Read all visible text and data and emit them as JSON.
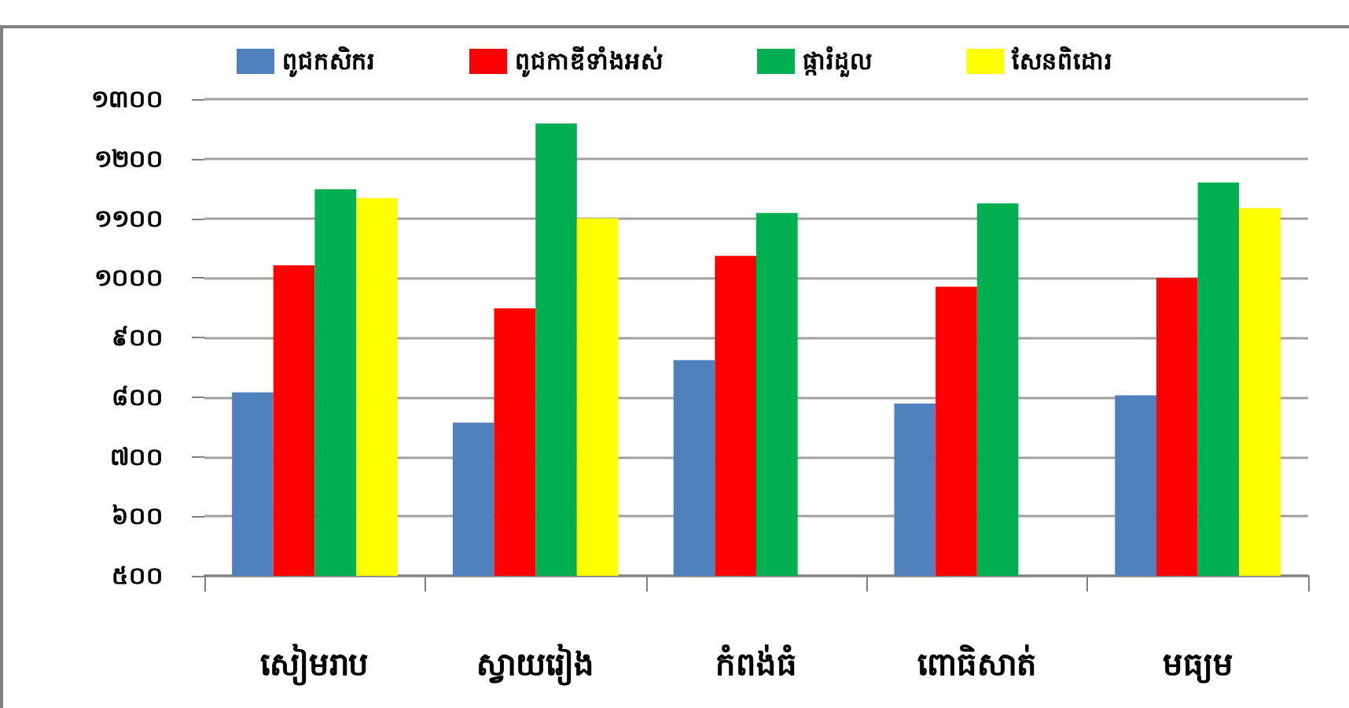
{
  "chart_data": {
    "type": "bar",
    "categories": [
      "សៀមរាប",
      "ស្វាយរៀង",
      "កំពង់ធំ",
      "ពោធិសាត់",
      "មធ្យម"
    ],
    "series": [
      {
        "name": "ពូជកសិករ",
        "color": "#4f81bd",
        "values": [
          808,
          757,
          862,
          789,
          803
        ]
      },
      {
        "name": "ពូជកាឌីទាំងអស់",
        "color": "#ff0000",
        "values": [
          1021,
          949,
          1037,
          985,
          1000
        ]
      },
      {
        "name": "ផ្ការំដួល",
        "color": "#00b050",
        "values": [
          1149,
          1259,
          1109,
          1125,
          1160
        ]
      },
      {
        "name": "សែនពិដោរ",
        "color": "#ffff00",
        "values": [
          1134,
          1100,
          null,
          null,
          1117
        ]
      }
    ],
    "ylim": [
      500,
      1300
    ],
    "yticks": [
      {
        "value": 500,
        "label": "៥០០"
      },
      {
        "value": 600,
        "label": "៦០០"
      },
      {
        "value": 700,
        "label": "៧០០"
      },
      {
        "value": 800,
        "label": "៨០០"
      },
      {
        "value": 900,
        "label": "៩០០"
      },
      {
        "value": 1000,
        "label": "១០០០"
      },
      {
        "value": 1100,
        "label": "១១០០"
      },
      {
        "value": 1200,
        "label": "១២០០"
      },
      {
        "value": 1300,
        "label": "១៣០០"
      }
    ],
    "grid": true,
    "legend": "top"
  }
}
